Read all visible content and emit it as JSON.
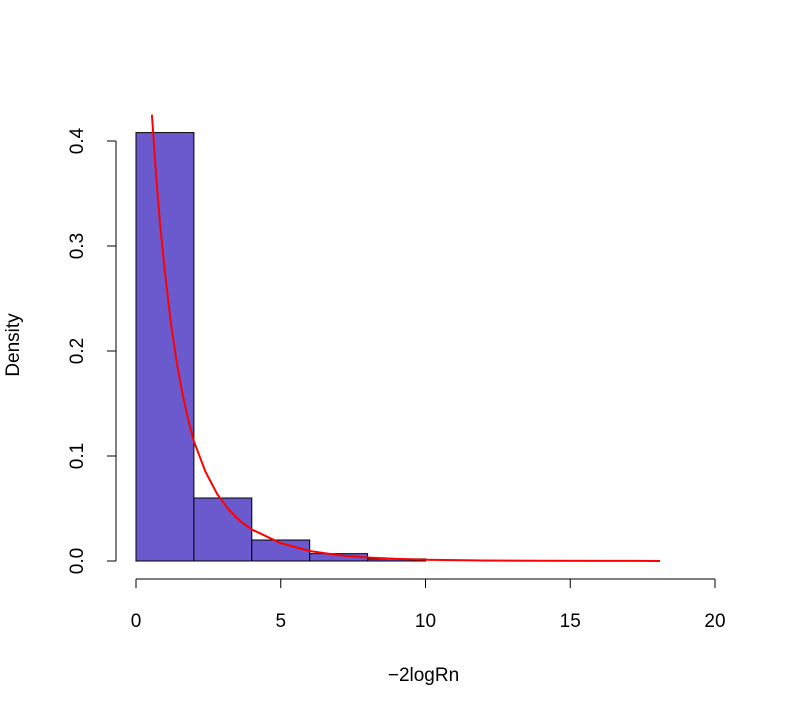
{
  "chart_data": {
    "type": "bar",
    "subtype": "histogram",
    "xlabel": "−2logRn",
    "ylabel": "Density",
    "xlim": [
      0,
      20
    ],
    "ylim": [
      0,
      0.42
    ],
    "x_ticks": [
      0,
      5,
      10,
      15,
      20
    ],
    "x_tick_labels": [
      "0",
      "5",
      "10",
      "15",
      "20"
    ],
    "y_ticks": [
      0.0,
      0.1,
      0.2,
      0.3,
      0.4
    ],
    "y_tick_labels": [
      "0.0",
      "0.1",
      "0.2",
      "0.3",
      "0.4"
    ],
    "bins": [
      {
        "start": 0,
        "end": 2,
        "density": 0.408
      },
      {
        "start": 2,
        "end": 4,
        "density": 0.06
      },
      {
        "start": 4,
        "end": 6,
        "density": 0.02
      },
      {
        "start": 6,
        "end": 8,
        "density": 0.007
      },
      {
        "start": 8,
        "end": 10,
        "density": 0.002
      },
      {
        "start": 10,
        "end": 12,
        "density": 0.0
      },
      {
        "start": 12,
        "end": 14,
        "density": 0.0
      },
      {
        "start": 14,
        "end": 16,
        "density": 0.0
      },
      {
        "start": 16,
        "end": 18,
        "density": 0.0
      },
      {
        "start": 18,
        "end": 20,
        "density": 0.0
      }
    ],
    "bar_color": "#6A5ACD",
    "curve": {
      "x": [
        0.55,
        0.7,
        0.85,
        1.0,
        1.2,
        1.4,
        1.6,
        1.8,
        2.0,
        2.4,
        2.8,
        3.2,
        3.6,
        4.0,
        5.0,
        6.0,
        7.0,
        8.0,
        9.0,
        10.0,
        12.0,
        14.0,
        16.0,
        18.1
      ],
      "y": [
        0.425,
        0.365,
        0.315,
        0.275,
        0.228,
        0.19,
        0.16,
        0.135,
        0.114,
        0.085,
        0.064,
        0.049,
        0.038,
        0.03,
        0.017,
        0.0095,
        0.0055,
        0.0033,
        0.002,
        0.0012,
        0.0005,
        0.0002,
        0.0001,
        5e-05
      ],
      "color": "#FF0000"
    },
    "grid": false,
    "legend": "none"
  }
}
